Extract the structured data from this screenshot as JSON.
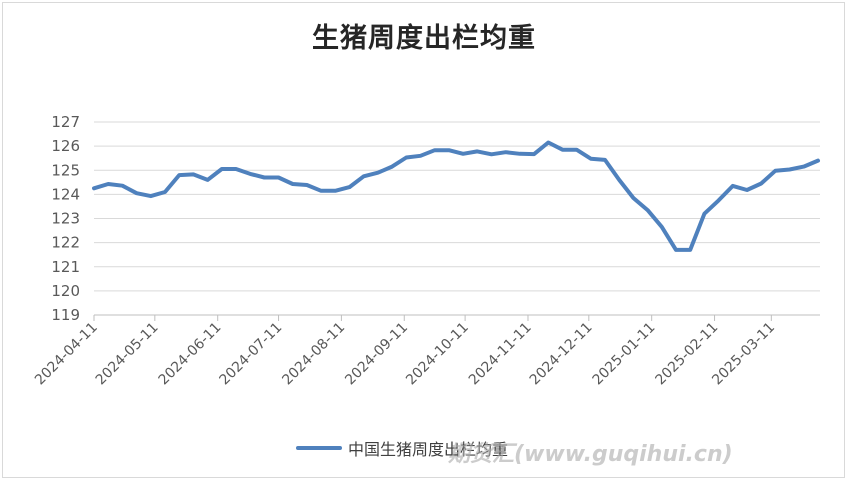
{
  "chart_data": {
    "type": "line",
    "title": "生猪周度出栏均重",
    "xlabel": "",
    "ylabel": "",
    "ylim": [
      119,
      127
    ],
    "yticks": [
      119,
      120,
      121,
      122,
      123,
      124,
      125,
      126,
      127
    ],
    "xticks": [
      "2024-04-11",
      "2024-05-11",
      "2024-06-11",
      "2024-07-11",
      "2024-08-11",
      "2024-09-11",
      "2024-10-11",
      "2024-11-11",
      "2024-12-11",
      "2025-01-11",
      "2025-02-11",
      "2025-03-11"
    ],
    "x_start": "2024-04-11",
    "x_end": "2025-04-04",
    "grid": "horizontal",
    "legend_position": "bottom",
    "series": [
      {
        "name": "中国生猪周度出栏均重",
        "color": "#4f81bd",
        "points": [
          [
            "2024-04-11",
            124.25
          ],
          [
            "2024-04-18",
            124.43
          ],
          [
            "2024-04-25",
            124.36
          ],
          [
            "2024-05-02",
            124.05
          ],
          [
            "2024-05-09",
            123.93
          ],
          [
            "2024-05-16",
            124.1
          ],
          [
            "2024-05-23",
            124.8
          ],
          [
            "2024-05-30",
            124.83
          ],
          [
            "2024-06-06",
            124.6
          ],
          [
            "2024-06-13",
            125.05
          ],
          [
            "2024-06-20",
            125.05
          ],
          [
            "2024-06-27",
            124.85
          ],
          [
            "2024-07-04",
            124.7
          ],
          [
            "2024-07-11",
            124.7
          ],
          [
            "2024-07-18",
            124.43
          ],
          [
            "2024-07-25",
            124.39
          ],
          [
            "2024-08-01",
            124.15
          ],
          [
            "2024-08-08",
            124.15
          ],
          [
            "2024-08-15",
            124.3
          ],
          [
            "2024-08-22",
            124.75
          ],
          [
            "2024-08-29",
            124.9
          ],
          [
            "2024-09-05",
            125.15
          ],
          [
            "2024-09-12",
            125.53
          ],
          [
            "2024-09-19",
            125.6
          ],
          [
            "2024-09-26",
            125.83
          ],
          [
            "2024-10-03",
            125.83
          ],
          [
            "2024-10-10",
            125.68
          ],
          [
            "2024-10-17",
            125.78
          ],
          [
            "2024-10-24",
            125.66
          ],
          [
            "2024-10-31",
            125.75
          ],
          [
            "2024-11-07",
            125.68
          ],
          [
            "2024-11-14",
            125.67
          ],
          [
            "2024-11-21",
            126.15
          ],
          [
            "2024-11-28",
            125.85
          ],
          [
            "2024-12-05",
            125.85
          ],
          [
            "2024-12-12",
            125.48
          ],
          [
            "2024-12-19",
            125.43
          ],
          [
            "2024-12-26",
            124.6
          ],
          [
            "2025-01-02",
            123.85
          ],
          [
            "2025-01-09",
            123.35
          ],
          [
            "2025-01-16",
            122.65
          ],
          [
            "2025-01-23",
            121.7
          ],
          [
            "2025-01-30",
            121.7
          ],
          [
            "2025-02-06",
            123.2
          ],
          [
            "2025-02-13",
            123.75
          ],
          [
            "2025-02-20",
            124.35
          ],
          [
            "2025-02-27",
            124.18
          ],
          [
            "2025-03-06",
            124.45
          ],
          [
            "2025-03-13",
            124.98
          ],
          [
            "2025-03-20",
            125.03
          ],
          [
            "2025-03-27",
            125.15
          ],
          [
            "2025-04-03",
            125.4
          ]
        ]
      }
    ]
  },
  "legend": {
    "label": "中国生猪周度出栏均重"
  },
  "watermark": {
    "text": "期货汇(www.guqihui.cn)"
  }
}
